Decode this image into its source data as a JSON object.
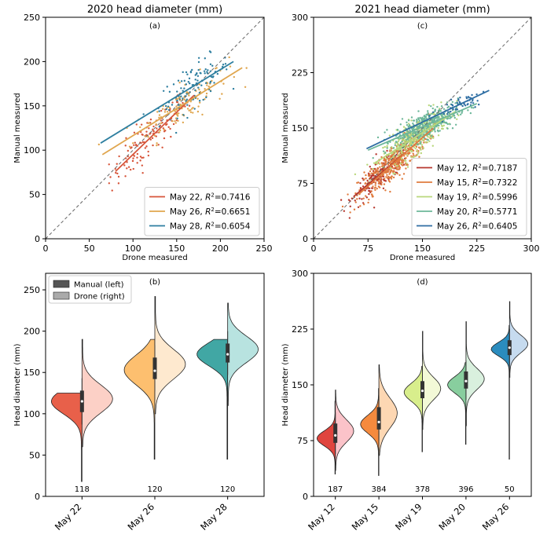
{
  "chart_data": [
    {
      "id": "a",
      "type": "scatter",
      "title": "2020 head diameter (mm)",
      "panel_label": "(a)",
      "xlabel": "Drone measured",
      "ylabel": "Manual measured",
      "xlim": [
        0,
        250
      ],
      "ylim": [
        0,
        250
      ],
      "xticks": [
        0,
        50,
        100,
        150,
        200,
        250
      ],
      "yticks": [
        0,
        50,
        100,
        150,
        200,
        250
      ],
      "identity_line": true,
      "legend_position": "lower-right",
      "series": [
        {
          "name": "May 22",
          "r2": "0.7416",
          "color": "#d7553a",
          "center": [
            118,
            116
          ],
          "spread": [
            22,
            20
          ],
          "n": 118,
          "fit": [
            [
              80,
              76
            ],
            [
              170,
              162
            ]
          ]
        },
        {
          "name": "May 26",
          "r2": "0.6651",
          "color": "#e0a64e",
          "center": [
            155,
            150
          ],
          "spread": [
            27,
            20
          ],
          "n": 120,
          "fit": [
            [
              65,
              95
            ],
            [
              225,
              193
            ]
          ]
        },
        {
          "name": "May 28",
          "r2": "0.6054",
          "color": "#2e7fa0",
          "center": [
            170,
            170
          ],
          "spread": [
            20,
            20
          ],
          "n": 120,
          "fit": [
            [
              63,
              108
            ],
            [
              215,
              200
            ]
          ]
        }
      ]
    },
    {
      "id": "c",
      "type": "scatter",
      "title": "2021 head diameter (mm)",
      "panel_label": "(c)",
      "xlabel": "Drone measured",
      "ylabel": "Manual measured",
      "xlim": [
        0,
        300
      ],
      "ylim": [
        0,
        300
      ],
      "xticks": [
        0,
        75,
        150,
        225,
        300
      ],
      "yticks": [
        0,
        75,
        150,
        225,
        300
      ],
      "identity_line": true,
      "legend_position": "lower-right",
      "series": [
        {
          "name": "May 12",
          "r2": "0.7187",
          "color": "#b7382f",
          "center": [
            95,
            85
          ],
          "spread": [
            20,
            16
          ],
          "n": 187,
          "fit": [
            [
              55,
              57
            ],
            [
              140,
              128
            ]
          ]
        },
        {
          "name": "May 15",
          "r2": "0.7322",
          "color": "#e07b3e",
          "center": [
            110,
            100
          ],
          "spread": [
            24,
            20
          ],
          "n": 384,
          "fit": [
            [
              62,
              60
            ],
            [
              165,
              150
            ]
          ]
        },
        {
          "name": "May 19",
          "r2": "0.5996",
          "color": "#b9d77b",
          "center": [
            140,
            140
          ],
          "spread": [
            22,
            18
          ],
          "n": 378,
          "fit": [
            [
              85,
              103
            ],
            [
              195,
              172
            ]
          ]
        },
        {
          "name": "May 20",
          "r2": "0.5771",
          "color": "#6db79a",
          "center": [
            155,
            150
          ],
          "spread": [
            22,
            15
          ],
          "n": 396,
          "fit": [
            [
              75,
              120
            ],
            [
              225,
              183
            ]
          ]
        },
        {
          "name": "May 26",
          "r2": "0.6405",
          "color": "#2f6ea3",
          "center": [
            200,
            190
          ],
          "spread": [
            20,
            12
          ],
          "n": 50,
          "fit": [
            [
              73,
              122
            ],
            [
              242,
              201
            ]
          ]
        }
      ]
    },
    {
      "id": "b",
      "type": "violin",
      "panel_label": "(b)",
      "xlabel": "",
      "ylabel": "Head diameter (mm)",
      "ylim": [
        0,
        270
      ],
      "yticks": [
        0,
        50,
        100,
        150,
        200,
        250
      ],
      "legend": [
        {
          "label": "Manual (left)",
          "color": "#555555"
        },
        {
          "label": "Drone (right)",
          "color": "#aaaaaa"
        }
      ],
      "legend_position": "top-left",
      "groups": [
        {
          "category": "May 22",
          "n": "118",
          "left_color": "#e8604a",
          "right_color": "#fcd0c6",
          "manual": {
            "mean": 115,
            "sd": 15,
            "min": 18,
            "max": 125
          },
          "drone": {
            "mean": 118,
            "sd": 17,
            "min": 60,
            "max": 190
          },
          "q1": 102,
          "median": 115,
          "q3": 128
        },
        {
          "category": "May 26",
          "n": "120",
          "left_color": "#fdbf6f",
          "right_color": "#fee9cf",
          "manual": {
            "mean": 153,
            "sd": 18,
            "min": 45,
            "max": 190
          },
          "drone": {
            "mean": 160,
            "sd": 18,
            "min": 100,
            "max": 242
          },
          "q1": 142,
          "median": 152,
          "q3": 168
        },
        {
          "category": "May 28",
          "n": "120",
          "left_color": "#41a7a4",
          "right_color": "#b8e3e0",
          "manual": {
            "mean": 172,
            "sd": 14,
            "min": 45,
            "max": 190
          },
          "drone": {
            "mean": 178,
            "sd": 16,
            "min": 110,
            "max": 234
          },
          "q1": 162,
          "median": 172,
          "q3": 185
        }
      ]
    },
    {
      "id": "d",
      "type": "violin",
      "panel_label": "(d)",
      "xlabel": "",
      "ylabel": "Head diameter (mm)",
      "ylim": [
        0,
        300
      ],
      "yticks": [
        0,
        75,
        150,
        225,
        300
      ],
      "groups": [
        {
          "category": "May 12",
          "n": "187",
          "left_color": "#e0453e",
          "right_color": "#fbc3c9",
          "manual": {
            "mean": 78,
            "sd": 10,
            "min": 30,
            "max": 128
          },
          "drone": {
            "mean": 88,
            "sd": 15,
            "min": 35,
            "max": 143
          },
          "q1": 72,
          "median": 82,
          "q3": 98
        },
        {
          "category": "May 15",
          "n": "384",
          "left_color": "#f58a3e",
          "right_color": "#fdd7b3",
          "manual": {
            "mean": 97,
            "sd": 12,
            "min": 28,
            "max": 145
          },
          "drone": {
            "mean": 112,
            "sd": 20,
            "min": 55,
            "max": 177
          },
          "q1": 90,
          "median": 100,
          "q3": 120
        },
        {
          "category": "May 19",
          "n": "378",
          "left_color": "#d8ee8c",
          "right_color": "#f3f9d7",
          "manual": {
            "mean": 140,
            "sd": 12,
            "min": 60,
            "max": 175
          },
          "drone": {
            "mean": 145,
            "sd": 15,
            "min": 90,
            "max": 222
          },
          "q1": 132,
          "median": 142,
          "q3": 155
        },
        {
          "category": "May 20",
          "n": "396",
          "left_color": "#88ce9e",
          "right_color": "#d9f0de",
          "manual": {
            "mean": 150,
            "sd": 11,
            "min": 70,
            "max": 180
          },
          "drone": {
            "mean": 158,
            "sd": 14,
            "min": 95,
            "max": 235
          },
          "q1": 145,
          "median": 155,
          "q3": 168
        },
        {
          "category": "May 26",
          "n": "50",
          "left_color": "#2b8cbe",
          "right_color": "#c6dbef",
          "manual": {
            "mean": 198,
            "sd": 9,
            "min": 50,
            "max": 230
          },
          "drone": {
            "mean": 205,
            "sd": 12,
            "min": 160,
            "max": 262
          },
          "q1": 190,
          "median": 200,
          "q3": 210
        }
      ]
    }
  ]
}
